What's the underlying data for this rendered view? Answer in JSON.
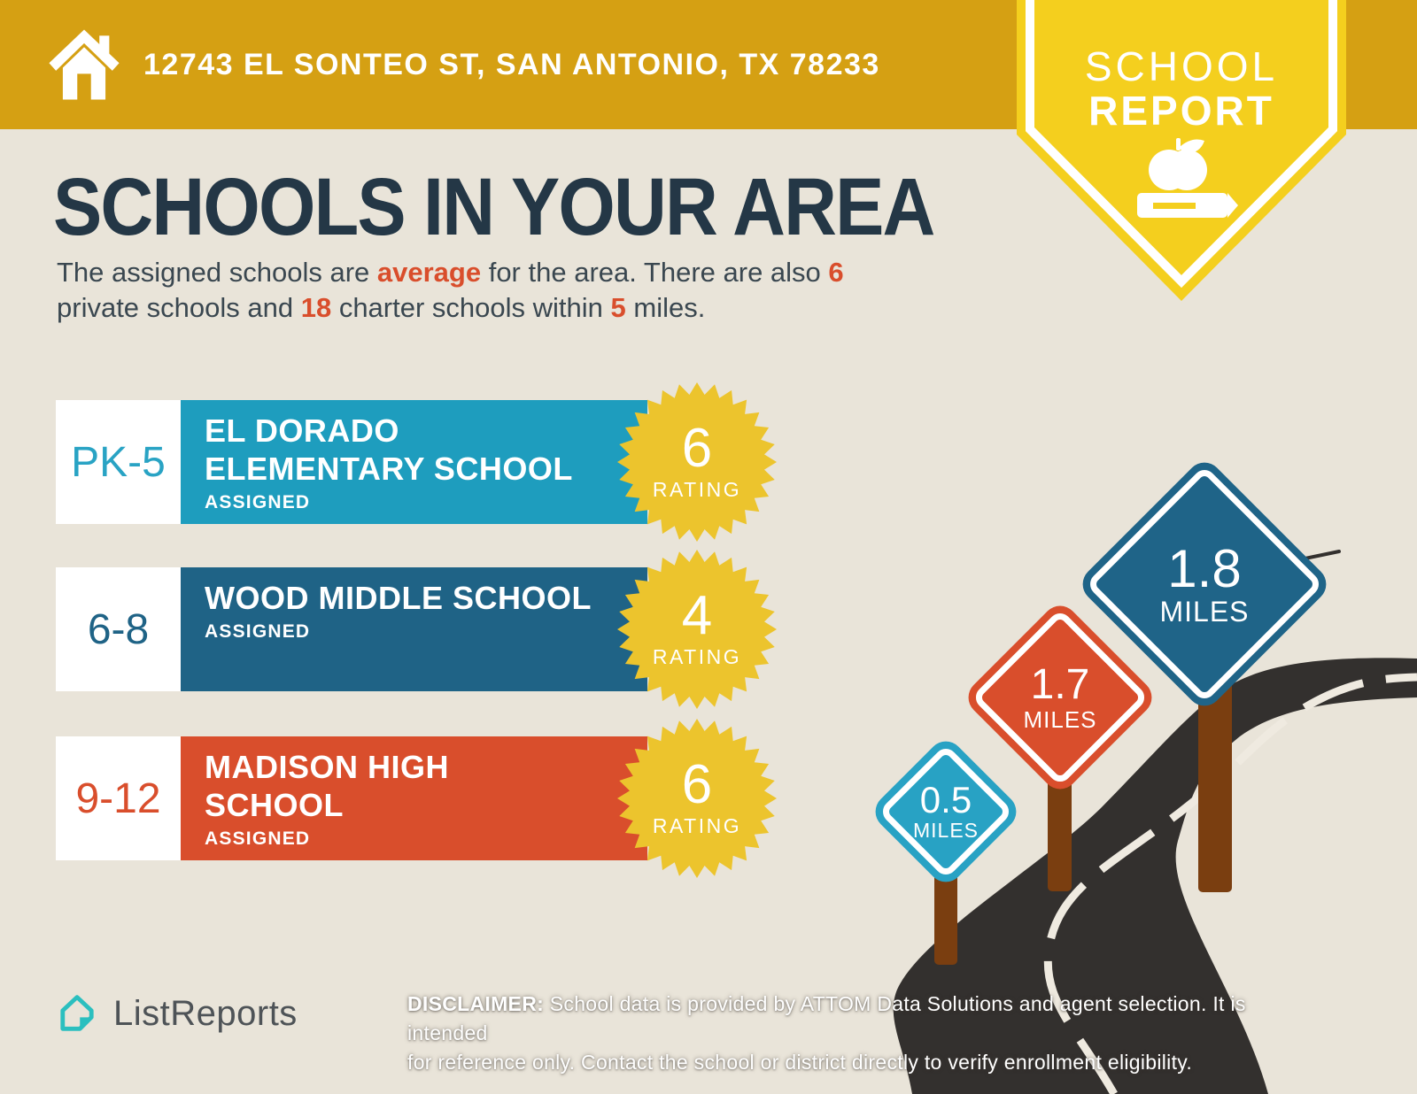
{
  "header": {
    "address": "12743 EL SONTEO ST, SAN ANTONIO, TX 78233"
  },
  "ribbon": {
    "line1": "SCHOOL",
    "line2": "REPORT"
  },
  "title": "SCHOOLS IN YOUR AREA",
  "intro": {
    "l1a": "The assigned schools are ",
    "l1b": "average",
    "l1c": " for the area. There are also ",
    "l1d": "6",
    "l2a": "private schools and ",
    "l2b": "18",
    "l2c": " charter schools within ",
    "l2d": "5",
    "l2e": " miles."
  },
  "schools": [
    {
      "grades": "PK-5",
      "name_line1": "EL DORADO",
      "name_line2": "ELEMENTARY SCHOOL",
      "status": "ASSIGNED",
      "rating": "6",
      "rating_label": "RATING",
      "bar_color": "#1E9DBE"
    },
    {
      "grades": "6-8",
      "name_line1": "WOOD MIDDLE SCHOOL",
      "name_line2": "",
      "status": "ASSIGNED",
      "rating": "4",
      "rating_label": "RATING",
      "bar_color": "#1F6386"
    },
    {
      "grades": "9-12",
      "name_line1": "MADISON HIGH",
      "name_line2": "SCHOOL",
      "status": "ASSIGNED",
      "rating": "6",
      "rating_label": "RATING",
      "bar_color": "#D94E2C"
    }
  ],
  "signs": [
    {
      "distance": "0.5",
      "unit": "MILES",
      "color": "#28A2C4"
    },
    {
      "distance": "1.7",
      "unit": "MILES",
      "color": "#D94E2C"
    },
    {
      "distance": "1.8",
      "unit": "MILES",
      "color": "#1F6488"
    }
  ],
  "footer": {
    "brand": "ListReports",
    "disclaimer_label": "DISCLAIMER:",
    "disclaimer_rest1": " School data is provided by ATTOM Data Solutions and agent selection. It is intended",
    "disclaimer_line2": "for reference only. Contact the school or district directly to verify enrollment eligibility."
  },
  "colors": {
    "top_bar_gold": "#D5A013",
    "ribbon_yellow": "#F4CF1E",
    "badge_gold": "#ECC42D",
    "background": "#E9E4D9",
    "heading_navy": "#243746",
    "accent_red": "#D94E2C",
    "row_teal": "#1E9DBE",
    "row_dark_blue": "#1F6386",
    "road_charcoal": "#33302E",
    "post_brown": "#7A3E10",
    "logo_teal": "#2BBFBF"
  }
}
